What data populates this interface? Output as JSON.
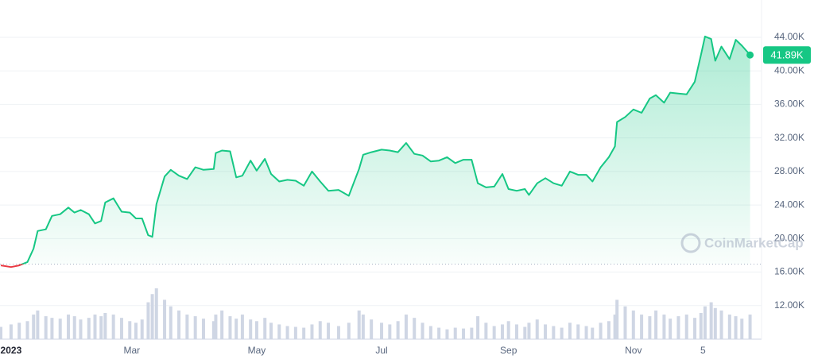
{
  "chart_data": {
    "type": "line",
    "color": "#16c784",
    "down_color": "#ea3943",
    "volume_color": "#cfd6e4",
    "grid": true,
    "watermark": "CoinMarketCap",
    "xlim": [
      -5.4,
      366.6
    ],
    "xticks": [
      {
        "value": 0,
        "label": "2023"
      },
      {
        "value": 59,
        "label": "Mar"
      },
      {
        "value": 120,
        "label": "May"
      },
      {
        "value": 181,
        "label": "Jul"
      },
      {
        "value": 243,
        "label": "Sep"
      },
      {
        "value": 304,
        "label": "Nov"
      },
      {
        "value": 338,
        "label": "5"
      }
    ],
    "ylim": [
      8000,
      48450
    ],
    "yticks": [
      {
        "value": 12000,
        "label": "12.00K"
      },
      {
        "value": 16000,
        "label": "16.00K"
      },
      {
        "value": 20000,
        "label": "20.00K"
      },
      {
        "value": 24000,
        "label": "24.00K"
      },
      {
        "value": 28000,
        "label": "28.00K"
      },
      {
        "value": 32000,
        "label": "32.00K"
      },
      {
        "value": 36000,
        "label": "36.00K"
      },
      {
        "value": 40000,
        "label": "40.00K"
      },
      {
        "value": 44000,
        "label": "44.00K"
      }
    ],
    "baseline": 16950,
    "current_price": {
      "value": 41890,
      "label": "41.89K"
    },
    "x": [
      -5,
      0,
      4,
      8,
      11,
      13,
      17,
      20,
      24,
      28,
      31,
      34,
      38,
      41,
      44,
      46,
      50,
      54,
      58,
      61,
      64,
      67,
      69,
      71,
      75,
      78,
      82,
      86,
      90,
      94,
      99,
      100,
      103,
      107,
      110,
      113,
      117,
      120,
      124,
      127,
      131,
      135,
      139,
      143,
      147,
      151,
      155,
      160,
      165,
      170,
      172,
      176,
      181,
      185,
      189,
      193,
      197,
      201,
      205,
      209,
      213,
      217,
      221,
      225,
      228,
      232,
      236,
      240,
      243,
      247,
      251,
      253,
      257,
      261,
      265,
      269,
      273,
      277,
      281,
      284,
      288,
      292,
      295,
      296,
      300,
      304,
      308,
      312,
      315,
      319,
      322,
      326,
      330,
      334,
      337,
      339,
      342,
      344,
      347,
      351,
      354,
      357,
      361
    ],
    "values": [
      16800,
      16600,
      16800,
      17200,
      18800,
      20900,
      21100,
      22700,
      22900,
      23700,
      23100,
      23400,
      22900,
      21800,
      22100,
      24300,
      24800,
      23200,
      23100,
      22400,
      22400,
      20400,
      20200,
      24100,
      27400,
      28200,
      27500,
      27100,
      28500,
      28200,
      28300,
      30200,
      30500,
      30400,
      27300,
      27500,
      29300,
      28100,
      29500,
      27700,
      26800,
      27000,
      26900,
      26300,
      28000,
      26800,
      25700,
      25800,
      25100,
      28300,
      30000,
      30300,
      30600,
      30500,
      30300,
      31400,
      30100,
      29900,
      29200,
      29300,
      29700,
      29000,
      29400,
      29400,
      26600,
      26100,
      26200,
      27700,
      25900,
      25700,
      25900,
      25200,
      26600,
      27200,
      26600,
      26300,
      28000,
      27600,
      27600,
      26800,
      28500,
      29700,
      31000,
      33900,
      34500,
      35400,
      35000,
      36700,
      37100,
      36200,
      37400,
      37300,
      37200,
      38700,
      41900,
      44100,
      43800,
      41200,
      42900,
      41400,
      43700,
      43000,
      41890
    ],
    "volume": [
      15,
      18,
      20,
      22,
      30,
      35,
      28,
      26,
      25,
      30,
      28,
      24,
      26,
      30,
      28,
      32,
      30,
      26,
      22,
      20,
      24,
      45,
      55,
      62,
      48,
      40,
      35,
      30,
      28,
      25,
      22,
      30,
      35,
      28,
      25,
      30,
      24,
      22,
      26,
      20,
      18,
      16,
      15,
      14,
      18,
      22,
      20,
      16,
      20,
      35,
      30,
      24,
      20,
      18,
      22,
      30,
      26,
      20,
      16,
      14,
      12,
      14,
      13,
      14,
      28,
      20,
      16,
      18,
      22,
      18,
      15,
      20,
      24,
      18,
      16,
      14,
      20,
      18,
      16,
      14,
      20,
      22,
      30,
      48,
      40,
      35,
      30,
      28,
      35,
      30,
      25,
      28,
      30,
      26,
      32,
      40,
      45,
      38,
      35,
      30,
      28,
      25,
      30
    ]
  }
}
